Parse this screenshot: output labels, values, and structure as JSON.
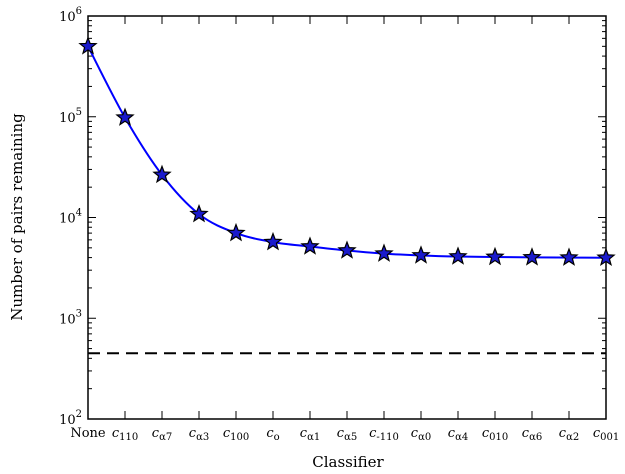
{
  "chart_data": {
    "type": "line",
    "xlabel": "Classifier",
    "ylabel": "Number of pairs remaining",
    "yscale": "log",
    "ylim": [
      100,
      1000000
    ],
    "y_ticks": [
      {
        "base": "10",
        "exp": "2",
        "value": 100
      },
      {
        "base": "10",
        "exp": "3",
        "value": 1000
      },
      {
        "base": "10",
        "exp": "4",
        "value": 10000
      },
      {
        "base": "10",
        "exp": "5",
        "value": 100000
      },
      {
        "base": "10",
        "exp": "6",
        "value": 1000000
      }
    ],
    "categories": [
      {
        "base": "None",
        "sub": ""
      },
      {
        "base": "c",
        "sub": "110"
      },
      {
        "base": "c",
        "sub": "α7"
      },
      {
        "base": "c",
        "sub": "α3"
      },
      {
        "base": "c",
        "sub": "100"
      },
      {
        "base": "c",
        "sub": "o"
      },
      {
        "base": "c",
        "sub": "α1"
      },
      {
        "base": "c",
        "sub": "α5"
      },
      {
        "base": "c",
        "sub": "-110"
      },
      {
        "base": "c",
        "sub": "α0"
      },
      {
        "base": "c",
        "sub": "α4"
      },
      {
        "base": "c",
        "sub": "010"
      },
      {
        "base": "c",
        "sub": "α6"
      },
      {
        "base": "c",
        "sub": "α2"
      },
      {
        "base": "c",
        "sub": "001"
      }
    ],
    "series": [
      {
        "values": [
          500000,
          98000,
          26500,
          10800,
          7000,
          5700,
          5150,
          4700,
          4380,
          4200,
          4100,
          4060,
          4020,
          4000,
          3980
        ],
        "color": "#0000ff",
        "marker": "star",
        "marker_color": "#1a1acc"
      }
    ],
    "reference_line": {
      "value": 450,
      "style": "dashed",
      "color": "#000000"
    },
    "grid": false,
    "legend": "none"
  }
}
